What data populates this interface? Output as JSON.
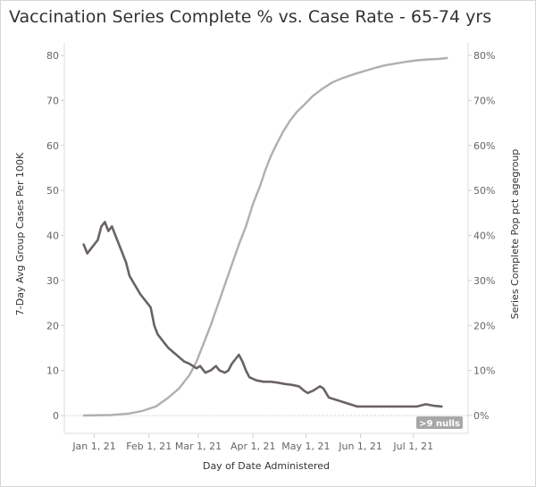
{
  "title": "Vaccination Series Complete % vs. Case Rate  - 65-74 yrs",
  "chart_data": {
    "type": "line",
    "title": "Vaccination Series Complete % vs. Case Rate  - 65-74 yrs",
    "xlabel": "Day of Date Administered",
    "ylabel_left": "7-Day Avg Group Cases Per 100K",
    "ylabel_right": "Series Complete Pop pct agegroup",
    "x_ticks": [
      "Jan 1, 21",
      "Feb 1, 21",
      "Mar 1, 21",
      "Apr 1, 21",
      "May 1, 21",
      "Jun 1, 21",
      "Jul 1, 21"
    ],
    "ylim_left": [
      0,
      80
    ],
    "y_ticks_left": [
      "0",
      "10",
      "20",
      "30",
      "40",
      "50",
      "60",
      "70",
      "80"
    ],
    "ylim_right": [
      0,
      0.8
    ],
    "y_ticks_right": [
      "0%",
      "10%",
      "20%",
      "30%",
      "40%",
      "50%",
      "60%",
      "70%",
      "80%"
    ],
    "grid": false,
    "null_indicator": ">9 nulls",
    "series": [
      {
        "axis": "left",
        "color": "#6a6268",
        "x": [
          "2020-12-26",
          "2020-12-28",
          "2020-12-30",
          "2021-01-03",
          "2021-01-05",
          "2021-01-07",
          "2021-01-09",
          "2021-01-11",
          "2021-01-13",
          "2021-01-16",
          "2021-01-19",
          "2021-01-21",
          "2021-01-24",
          "2021-01-27",
          "2021-01-29",
          "2021-01-31",
          "2021-02-02",
          "2021-02-04",
          "2021-02-06",
          "2021-02-08",
          "2021-02-10",
          "2021-02-12",
          "2021-02-15",
          "2021-02-18",
          "2021-02-21",
          "2021-02-24",
          "2021-02-26",
          "2021-02-28",
          "2021-03-02",
          "2021-03-05",
          "2021-03-08",
          "2021-03-11",
          "2021-03-13",
          "2021-03-16",
          "2021-03-18",
          "2021-03-20",
          "2021-03-22",
          "2021-03-24",
          "2021-03-26",
          "2021-03-28",
          "2021-03-30",
          "2021-04-03",
          "2021-04-07",
          "2021-04-11",
          "2021-04-15",
          "2021-04-19",
          "2021-04-23",
          "2021-04-27",
          "2021-04-30",
          "2021-05-02",
          "2021-05-05",
          "2021-05-07",
          "2021-05-09",
          "2021-05-11",
          "2021-05-14",
          "2021-05-18",
          "2021-05-22",
          "2021-05-26",
          "2021-05-30",
          "2021-06-03",
          "2021-06-08",
          "2021-06-13",
          "2021-06-18",
          "2021-06-23",
          "2021-06-28",
          "2021-07-03",
          "2021-07-08",
          "2021-07-12",
          "2021-07-17"
        ],
        "y": [
          38,
          36,
          37,
          39,
          42,
          43,
          41,
          42,
          40,
          37,
          34,
          31,
          29,
          27,
          26,
          25,
          24,
          20,
          18,
          17,
          16,
          15,
          14,
          13,
          12,
          11.5,
          11,
          10.5,
          11,
          9.5,
          10,
          11,
          10,
          9.5,
          10,
          11.5,
          12.5,
          13.5,
          12,
          10,
          8.5,
          7.8,
          7.5,
          7.5,
          7.3,
          7,
          6.8,
          6.5,
          5.5,
          5,
          5.5,
          6,
          6.5,
          6,
          4,
          3.5,
          3,
          2.5,
          2,
          2,
          2,
          2,
          2,
          2,
          2,
          2,
          2.5,
          2.2,
          2
        ]
      },
      {
        "axis": "right",
        "color": "#b3aeae",
        "x": [
          "2020-12-26",
          "2021-01-10",
          "2021-01-20",
          "2021-01-28",
          "2021-02-05",
          "2021-02-12",
          "2021-02-18",
          "2021-02-24",
          "2021-02-28",
          "2021-03-04",
          "2021-03-08",
          "2021-03-12",
          "2021-03-16",
          "2021-03-20",
          "2021-03-24",
          "2021-03-28",
          "2021-04-01",
          "2021-04-05",
          "2021-04-08",
          "2021-04-11",
          "2021-04-14",
          "2021-04-18",
          "2021-04-22",
          "2021-04-26",
          "2021-04-30",
          "2021-05-05",
          "2021-05-10",
          "2021-05-16",
          "2021-05-22",
          "2021-05-28",
          "2021-06-03",
          "2021-06-09",
          "2021-06-15",
          "2021-06-21",
          "2021-06-27",
          "2021-07-03",
          "2021-07-09",
          "2021-07-15",
          "2021-07-20"
        ],
        "y": [
          0,
          0.001,
          0.004,
          0.01,
          0.02,
          0.04,
          0.06,
          0.09,
          0.12,
          0.16,
          0.2,
          0.245,
          0.29,
          0.335,
          0.38,
          0.42,
          0.47,
          0.51,
          0.545,
          0.575,
          0.6,
          0.63,
          0.655,
          0.675,
          0.69,
          0.71,
          0.725,
          0.74,
          0.75,
          0.758,
          0.765,
          0.772,
          0.778,
          0.782,
          0.786,
          0.789,
          0.791,
          0.792,
          0.794
        ]
      }
    ]
  }
}
